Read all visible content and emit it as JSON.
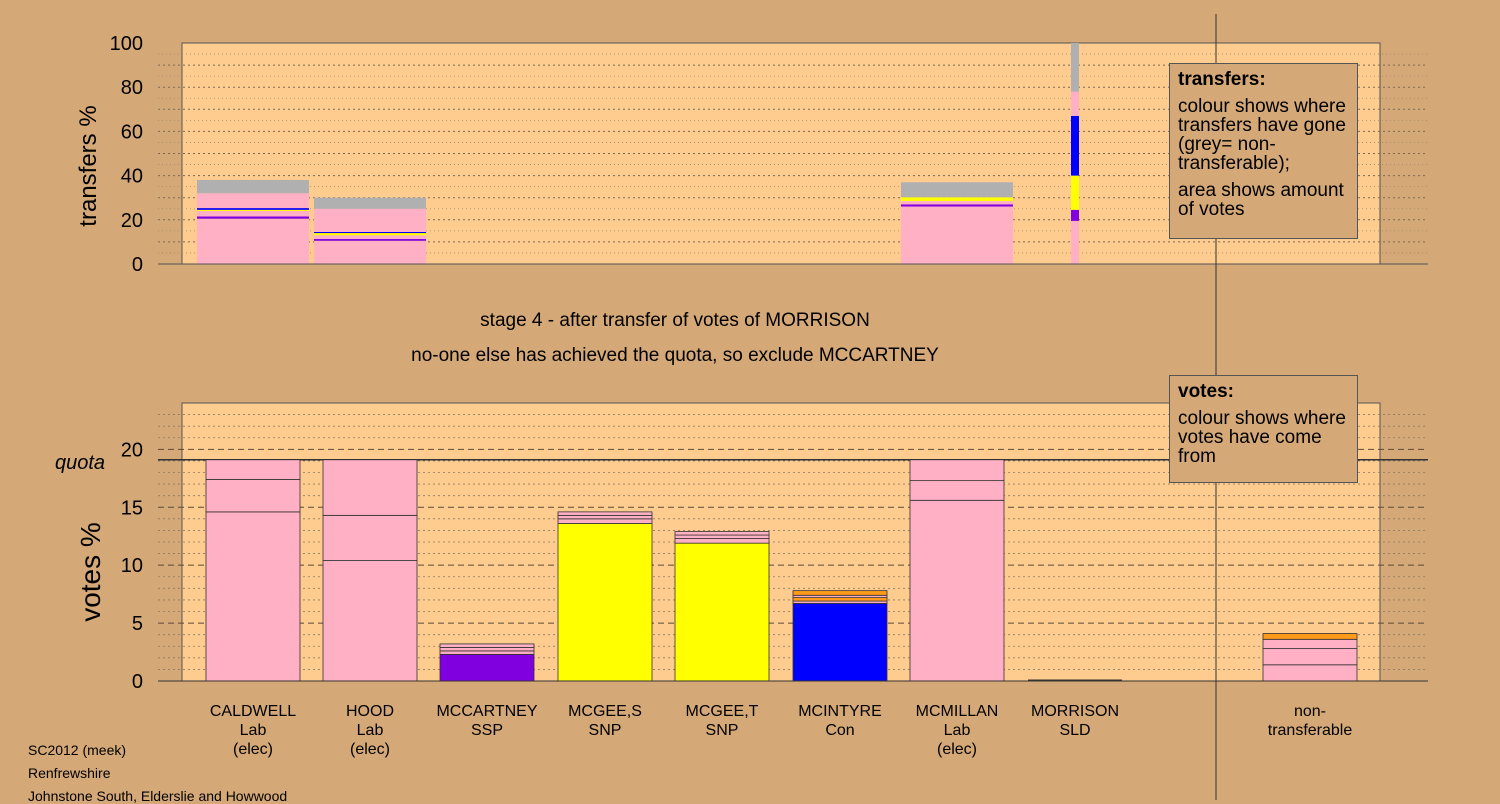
{
  "colors": {
    "background": "#d5a877",
    "panel": "#ffcc8f",
    "Lab": "#ffb0c4",
    "SNP": "#ffff00",
    "SSP": "#8000e0",
    "Con": "#0000ff",
    "SLD": "#ff9a1a",
    "nontransferable": "#b0b0b0"
  },
  "chart_data": [
    {
      "type": "bar",
      "stacked": true,
      "ylabel": "transfers %",
      "ylim": [
        0,
        100
      ],
      "yticks": [
        0,
        20,
        40,
        60,
        80,
        100
      ],
      "grid": true,
      "categories": [
        "CALDWELL",
        "HOOD",
        "MCCARTNEY",
        "MCGEE,S",
        "MCGEE,T",
        "MCINTYRE",
        "MCMILLAN",
        "MORRISON",
        "non-transferable"
      ],
      "bars": [
        {
          "category": "CALDWELL",
          "segments": [
            {
              "party": "Lab",
              "value": 20.5
            },
            {
              "party": "SSP",
              "value": 1.0
            },
            {
              "party": "Lab",
              "value": 2.5
            },
            {
              "party": "SNP",
              "value": 0.5
            },
            {
              "party": "Con",
              "value": 0.8
            },
            {
              "party": "Lab",
              "value": 6.7
            },
            {
              "party": "nontransferable",
              "value": 6.0
            }
          ]
        },
        {
          "category": "HOOD",
          "segments": [
            {
              "party": "Lab",
              "value": 10.5
            },
            {
              "party": "SSP",
              "value": 0.8
            },
            {
              "party": "Lab",
              "value": 1.7
            },
            {
              "party": "SNP",
              "value": 1.0
            },
            {
              "party": "Con",
              "value": 0.5
            },
            {
              "party": "Lab",
              "value": 10.5
            },
            {
              "party": "nontransferable",
              "value": 5.0
            }
          ]
        },
        {
          "category": "MCMILLAN",
          "segments": [
            {
              "party": "Lab",
              "value": 26.0
            },
            {
              "party": "SSP",
              "value": 1.0
            },
            {
              "party": "Lab",
              "value": 1.5
            },
            {
              "party": "SNP",
              "value": 1.7
            },
            {
              "party": "nontransferable",
              "value": 6.8
            }
          ]
        },
        {
          "category": "MORRISON",
          "segments": [
            {
              "party": "Lab",
              "value": 19.5
            },
            {
              "party": "SSP",
              "value": 5.0
            },
            {
              "party": "SNP",
              "value": 15.5
            },
            {
              "party": "Con",
              "value": 27.0
            },
            {
              "party": "Lab",
              "value": 11.0
            },
            {
              "party": "nontransferable",
              "value": 22.0
            }
          ]
        }
      ]
    },
    {
      "type": "bar",
      "stacked": true,
      "ylabel": "votes %",
      "ylim": [
        0,
        24
      ],
      "yticks": [
        0,
        5,
        10,
        15,
        20
      ],
      "quota": 19.1,
      "quota_label": "quota",
      "grid": true,
      "candidates": [
        {
          "name": "CALDWELL",
          "party": "Lab",
          "note": "(elec)",
          "segments": [
            {
              "party": "Lab",
              "value": 14.6
            },
            {
              "party": "Lab",
              "value": 2.8
            },
            {
              "party": "Lab",
              "value": 1.7
            }
          ]
        },
        {
          "name": "HOOD",
          "party": "Lab",
          "note": "(elec)",
          "segments": [
            {
              "party": "Lab",
              "value": 10.4
            },
            {
              "party": "Lab",
              "value": 3.9
            },
            {
              "party": "Lab",
              "value": 4.8
            }
          ]
        },
        {
          "name": "MCCARTNEY",
          "party": "SSP",
          "note": "",
          "segments": [
            {
              "party": "SSP",
              "value": 2.3
            },
            {
              "party": "Lab",
              "value": 0.3
            },
            {
              "party": "Lab",
              "value": 0.3
            },
            {
              "party": "Lab",
              "value": 0.3
            }
          ]
        },
        {
          "name": "MCGEE,S",
          "party": "SNP",
          "note": "",
          "segments": [
            {
              "party": "SNP",
              "value": 13.6
            },
            {
              "party": "Lab",
              "value": 0.4
            },
            {
              "party": "Lab",
              "value": 0.3
            },
            {
              "party": "Lab",
              "value": 0.3
            }
          ]
        },
        {
          "name": "MCGEE,T",
          "party": "SNP",
          "note": "",
          "segments": [
            {
              "party": "SNP",
              "value": 11.9
            },
            {
              "party": "Lab",
              "value": 0.4
            },
            {
              "party": "Lab",
              "value": 0.3
            },
            {
              "party": "Lab",
              "value": 0.3
            }
          ]
        },
        {
          "name": "MCINTYRE",
          "party": "Con",
          "note": "",
          "segments": [
            {
              "party": "Con",
              "value": 6.7
            },
            {
              "party": "Lab",
              "value": 0.2
            },
            {
              "party": "SLD",
              "value": 0.3
            },
            {
              "party": "Lab",
              "value": 0.2
            },
            {
              "party": "SLD",
              "value": 0.4
            }
          ]
        },
        {
          "name": "MCMILLAN",
          "party": "Lab",
          "note": "(elec)",
          "segments": [
            {
              "party": "Lab",
              "value": 15.6
            },
            {
              "party": "Lab",
              "value": 1.7
            },
            {
              "party": "Lab",
              "value": 1.8
            }
          ]
        },
        {
          "name": "MORRISON",
          "party": "SLD",
          "note": "",
          "segments": []
        },
        {
          "name": "non-",
          "party": "transferable",
          "note": "",
          "segments": [
            {
              "party": "Lab",
              "value": 1.4
            },
            {
              "party": "Lab",
              "value": 1.4
            },
            {
              "party": "Lab",
              "value": 0.8
            },
            {
              "party": "SLD",
              "value": 0.5
            }
          ]
        }
      ]
    }
  ],
  "messages": {
    "stage": "stage 4 - after transfer of votes of MORRISON",
    "action": "no-one else has achieved the quota, so exclude MCCARTNEY"
  },
  "legend_transfers": {
    "title": "transfers:",
    "p1": "colour shows where transfers have gone (grey= non-transferable);",
    "p2": "area shows amount of votes"
  },
  "legend_votes": {
    "title": "votes:",
    "p1": "colour shows where votes have come from"
  },
  "footer": {
    "source": "SC2012 (meek)",
    "council": "Renfrewshire",
    "ward": "Johnstone South, Elderslie and Howwood"
  }
}
